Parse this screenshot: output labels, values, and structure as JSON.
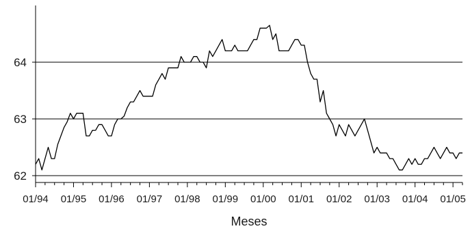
{
  "chart_data": {
    "type": "line",
    "title": "",
    "xlabel": "Meses",
    "ylabel": "",
    "xlim": [
      0,
      135
    ],
    "ylim": [
      62.0,
      65.0
    ],
    "x_tick_labels": [
      "01/94",
      "01/95",
      "01/96",
      "01/97",
      "01/98",
      "01/99",
      "01/00",
      "01/01",
      "01/02",
      "01/03",
      "01/04",
      "01/05"
    ],
    "y_tick_labels": [
      "62",
      "63",
      "64"
    ],
    "y_gridlines": [
      62,
      63,
      64
    ],
    "grid": "horizontal at ticks",
    "x_axis_note": "x values are month indices where 0 = 01/94",
    "series": [
      {
        "color": "#000000",
        "values": [
          62.2,
          62.3,
          62.1,
          62.3,
          62.5,
          62.3,
          62.3,
          62.55,
          62.7,
          62.85,
          62.95,
          63.1,
          63.0,
          63.1,
          63.1,
          63.1,
          62.7,
          62.7,
          62.8,
          62.8,
          62.9,
          62.9,
          62.8,
          62.7,
          62.7,
          62.9,
          63.0,
          63.0,
          63.05,
          63.2,
          63.3,
          63.3,
          63.4,
          63.5,
          63.4,
          63.4,
          63.4,
          63.4,
          63.6,
          63.7,
          63.8,
          63.7,
          63.9,
          63.9,
          63.9,
          63.9,
          64.1,
          64.0,
          64.0,
          64.0,
          64.1,
          64.1,
          64.0,
          64.0,
          63.9,
          64.2,
          64.1,
          64.2,
          64.3,
          64.4,
          64.2,
          64.2,
          64.2,
          64.3,
          64.2,
          64.2,
          64.2,
          64.2,
          64.3,
          64.4,
          64.4,
          64.6,
          64.6,
          64.6,
          64.65,
          64.4,
          64.5,
          64.2,
          64.2,
          64.2,
          64.2,
          64.3,
          64.4,
          64.4,
          64.3,
          64.3,
          64.0,
          63.8,
          63.7,
          63.7,
          63.3,
          63.5,
          63.1,
          63.0,
          62.9,
          62.7,
          62.9,
          62.8,
          62.7,
          62.9,
          62.8,
          62.7,
          62.8,
          62.9,
          63.0,
          62.8,
          62.6,
          62.4,
          62.5,
          62.4,
          62.4,
          62.4,
          62.3,
          62.3,
          62.2,
          62.1,
          62.1,
          62.2,
          62.3,
          62.2,
          62.3,
          62.2,
          62.2,
          62.3,
          62.3,
          62.4,
          62.5,
          62.4,
          62.3,
          62.4,
          62.5,
          62.4,
          62.4,
          62.3,
          62.4,
          62.4
        ]
      }
    ]
  }
}
